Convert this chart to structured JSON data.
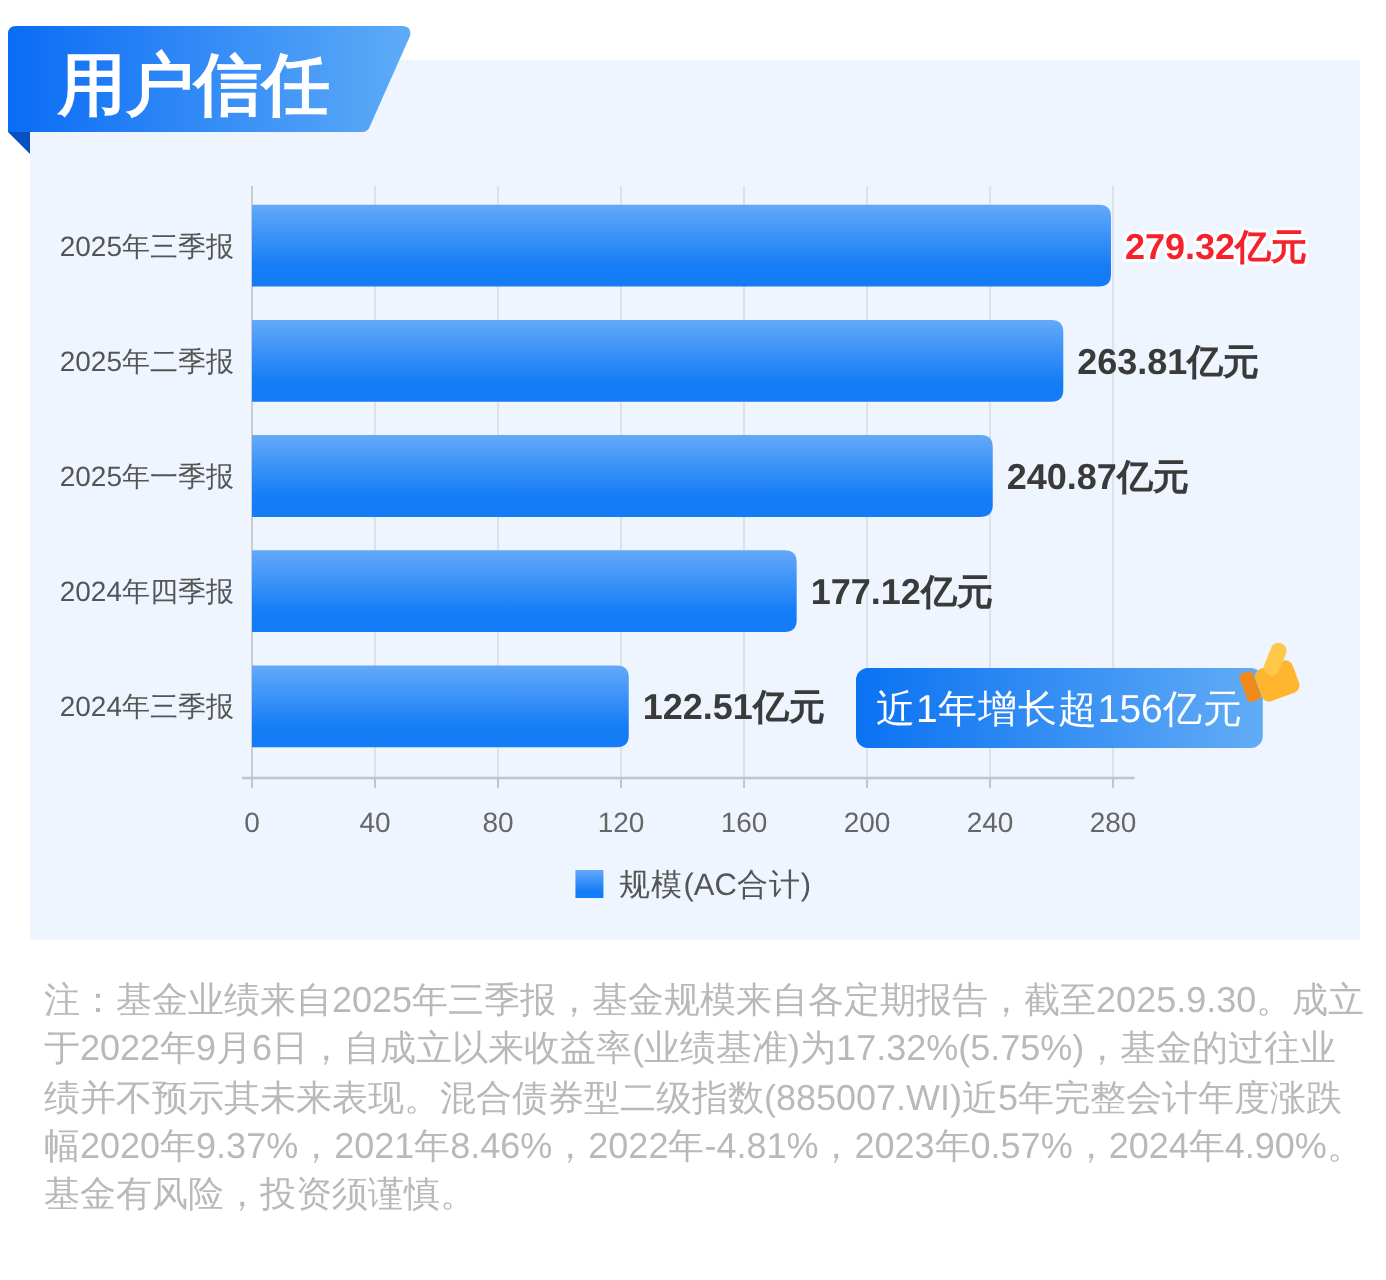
{
  "chart_data": {
    "type": "bar",
    "orientation": "horizontal",
    "title": "用户信任",
    "categories": [
      "2025年三季报",
      "2025年二季报",
      "2025年一季报",
      "2024年四季报",
      "2024年三季报"
    ],
    "series": [
      {
        "name": "规模(AC合计)",
        "color": "#2688f7",
        "values": [
          279.32,
          263.81,
          240.87,
          177.12,
          122.51
        ],
        "value_labels": [
          "279.32亿元",
          "263.81亿元",
          "240.87亿元",
          "177.12亿元",
          "122.51亿元"
        ]
      }
    ],
    "xlim": [
      0,
      287
    ],
    "xticks": [
      0,
      40,
      80,
      120,
      160,
      200,
      240,
      280
    ],
    "grid": "x",
    "legend": "bottom",
    "annotations": [
      "近1年增长超156亿元",
      "注：基金业绩来自2025年三季报，基金规模来自各定期报告，截至2025.9.30。成立于2022年9月6日，自成立以来收益率(业绩基准)为17.32%(5.75%)，基金的过往业绩并不预示其未来表现。混合债券型二级指数(885007.WI)近5年完整会计年度涨跌幅2020年9.37%，2021年8.46%，2022年-4.81%，2023年0.57%，2024年4.90%。基金有风险，投资须谨慎。"
    ]
  }
}
